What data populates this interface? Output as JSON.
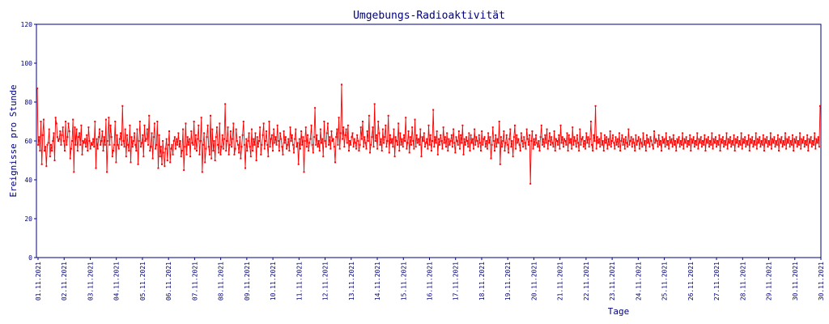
{
  "chart_data": {
    "type": "line",
    "title": "Umgebungs-Radioaktivität",
    "xlabel": "Tage",
    "ylabel": "Ereignisse pro Stunde",
    "ylim": [
      0,
      120
    ],
    "yticks": [
      0,
      20,
      40,
      60,
      80,
      100,
      120
    ],
    "xticks": [
      "01.11.2021",
      "02.11.2021",
      "03.11.2021",
      "04.11.2021",
      "05.11.2021",
      "06.11.2021",
      "07.11.2021",
      "08.11.2021",
      "09.11.2021",
      "10.11.2021",
      "11.11.2021",
      "12.11.2021",
      "13.11.2021",
      "14.11.2021",
      "15.11.2021",
      "16.11.2021",
      "17.11.2021",
      "18.11.2021",
      "19.11.2021",
      "20.11.2021",
      "21.11.2021",
      "22.11.2021",
      "23.11.2021",
      "24.11.2021",
      "25.11.2021",
      "26.11.2021",
      "27.11.2021",
      "28.11.2021",
      "29.11.2021",
      "30.11.2021",
      "30.11.2021"
    ],
    "grid": false,
    "legend": "none",
    "colors": {
      "series": "#ff0000",
      "axes": "#00007f"
    },
    "series": [
      {
        "values": [
          87,
          58,
          62,
          55,
          70,
          48,
          63,
          71,
          55,
          57,
          47,
          58,
          59,
          66,
          52,
          58,
          55,
          60,
          64,
          50,
          72,
          69,
          62,
          60,
          61,
          65,
          58,
          63,
          67,
          60,
          55,
          70,
          58,
          62,
          69,
          65,
          51,
          56,
          60,
          71,
          44,
          67,
          58,
          66,
          55,
          62,
          64,
          58,
          68,
          53,
          60,
          59,
          61,
          57,
          63,
          55,
          67,
          60,
          56,
          59,
          58,
          61,
          57,
          70,
          46,
          61,
          56,
          62,
          66,
          58,
          60,
          65,
          55,
          62,
          58,
          71,
          44,
          60,
          72,
          58,
          68,
          62,
          52,
          55,
          58,
          70,
          49,
          63,
          58,
          56,
          61,
          64,
          58,
          78,
          60,
          57,
          66,
          52,
          63,
          58,
          55,
          68,
          49,
          62,
          57,
          60,
          64,
          58,
          55,
          66,
          48,
          60,
          70,
          57,
          59,
          63,
          52,
          68,
          60,
          61,
          66,
          58,
          73,
          55,
          57,
          64,
          51,
          62,
          69,
          56,
          58,
          70,
          46,
          63,
          52,
          57,
          48,
          60,
          54,
          47,
          56,
          61,
          50,
          58,
          65,
          49,
          56,
          58,
          53,
          60,
          62,
          56,
          61,
          58,
          64,
          57,
          60,
          52,
          55,
          66,
          45,
          57,
          69,
          53,
          62,
          58,
          61,
          52,
          65,
          59,
          58,
          70,
          56,
          63,
          55,
          61,
          68,
          53,
          60,
          72,
          44,
          58,
          64,
          49,
          56,
          62,
          68,
          57,
          53,
          73,
          51,
          66,
          55,
          60,
          50,
          62,
          67,
          58,
          54,
          69,
          53,
          57,
          63,
          56,
          61,
          79,
          55,
          60,
          67,
          53,
          58,
          65,
          57,
          61,
          69,
          53,
          56,
          66,
          60,
          58,
          54,
          62,
          51,
          57,
          63,
          70,
          58,
          46,
          61,
          55,
          60,
          64,
          57,
          52,
          66,
          55,
          61,
          58,
          64,
          50,
          62,
          57,
          60,
          67,
          53,
          58,
          63,
          69,
          56,
          60,
          65,
          58,
          52,
          70,
          57,
          61,
          63,
          55,
          66,
          59,
          62,
          58,
          68,
          60,
          55,
          64,
          61,
          57,
          53,
          65,
          59,
          62,
          56,
          58,
          61,
          55,
          67,
          60,
          63,
          58,
          54,
          61,
          66,
          57,
          59,
          48,
          61,
          56,
          65,
          58,
          62,
          44,
          60,
          67,
          57,
          63,
          55,
          59,
          61,
          68,
          58,
          54,
          62,
          77,
          58,
          63,
          57,
          60,
          55,
          66,
          59,
          61,
          52,
          70,
          60,
          57,
          64,
          69,
          58,
          62,
          56,
          65,
          60,
          61,
          57,
          49,
          62,
          66,
          58,
          72,
          56,
          64,
          89,
          61,
          67,
          57,
          63,
          66,
          59,
          68,
          55,
          60,
          58,
          62,
          64,
          57,
          61,
          59,
          56,
          63,
          60,
          55,
          58,
          67,
          61,
          70,
          57,
          62,
          59,
          56,
          65,
          60,
          73,
          54,
          58,
          62,
          67,
          57,
          79,
          60,
          63,
          56,
          70,
          64,
          58,
          61,
          55,
          66,
          59,
          62,
          68,
          57,
          60,
          73,
          54,
          63,
          59,
          61,
          57,
          66,
          52,
          62,
          60,
          58,
          69,
          55,
          64,
          58,
          61,
          57,
          63,
          60,
          72,
          56,
          59,
          65,
          54,
          62,
          58,
          67,
          60,
          56,
          71,
          57,
          63,
          59,
          61,
          58,
          66,
          52,
          62,
          60,
          64,
          57,
          59,
          61,
          56,
          68,
          58,
          63,
          55,
          60,
          76,
          57,
          62,
          59,
          65,
          53,
          61,
          58,
          63,
          60,
          56,
          67,
          59,
          62,
          57,
          64,
          55,
          61,
          58,
          60,
          63,
          57,
          66,
          59,
          54,
          62,
          60,
          58,
          65,
          56,
          63,
          59,
          68,
          53,
          61,
          58,
          62,
          60,
          57,
          64,
          55,
          63,
          59,
          61,
          56,
          66,
          58,
          62,
          60,
          57,
          63,
          59,
          55,
          65,
          58,
          61,
          62,
          57,
          60,
          56,
          64,
          59,
          62,
          51,
          58,
          67,
          60,
          55,
          63,
          57,
          61,
          59,
          70,
          48,
          62,
          57,
          60,
          65,
          55,
          59,
          63,
          58,
          54,
          61,
          66,
          57,
          60,
          52,
          62,
          68,
          56,
          63,
          59,
          61,
          58,
          55,
          64,
          60,
          57,
          62,
          59,
          56,
          66,
          61,
          58,
          63,
          38,
          60,
          65,
          56,
          61,
          58,
          63,
          59,
          57,
          60,
          55,
          62,
          68,
          58,
          61,
          57,
          63,
          59,
          66,
          56,
          60,
          64,
          58,
          62,
          59,
          57,
          65,
          55,
          61,
          60,
          58,
          63,
          56,
          68,
          59,
          62,
          57,
          61,
          60,
          58,
          64,
          55,
          63,
          59,
          61,
          56,
          67,
          58,
          62,
          60,
          57,
          63,
          59,
          55,
          66,
          58,
          61,
          62,
          57,
          60,
          56,
          64,
          59,
          62,
          57,
          61,
          70,
          58,
          55,
          63,
          60,
          78,
          56,
          62,
          59,
          61,
          57,
          64,
          58,
          60,
          55,
          63,
          59,
          62,
          56,
          61,
          58,
          65,
          57,
          60,
          63,
          59,
          56,
          62,
          58,
          61,
          57,
          64,
          55,
          60,
          63,
          58,
          61,
          56,
          62,
          59,
          57,
          66,
          58,
          60,
          62,
          57,
          61,
          59,
          55,
          63,
          58,
          60,
          62,
          56,
          61,
          59,
          57,
          64,
          58,
          60,
          55,
          63,
          59,
          61,
          57,
          62,
          60,
          58,
          56,
          65,
          59,
          61,
          60,
          57,
          63,
          58,
          60,
          55,
          62,
          59,
          61,
          57,
          64,
          58,
          60,
          56,
          62,
          59,
          61,
          57,
          63,
          58,
          60,
          55,
          61,
          59,
          62,
          57,
          60,
          58,
          64,
          56,
          61,
          59,
          62,
          57,
          60,
          58,
          63,
          55,
          61,
          59,
          62,
          57,
          60,
          58,
          64,
          56,
          61,
          59,
          62,
          57,
          60,
          58,
          63,
          55,
          61,
          59,
          62,
          57,
          60,
          58,
          64,
          56,
          61,
          59,
          62,
          57,
          60,
          58,
          63,
          55,
          61,
          59,
          62,
          57,
          60,
          58,
          64,
          56,
          61,
          59,
          62,
          57,
          60,
          58,
          63,
          55,
          61,
          59,
          62,
          57,
          60,
          58,
          64,
          56,
          61,
          59,
          62,
          57,
          60,
          58,
          63,
          55,
          61,
          59,
          62,
          57,
          60,
          58,
          64,
          56,
          61,
          59,
          62,
          57,
          60,
          58,
          63,
          55,
          61,
          59,
          62,
          57,
          60,
          58,
          64,
          56,
          61,
          59,
          62,
          57,
          60,
          58,
          63,
          55,
          61,
          59,
          62,
          57,
          60,
          58,
          64,
          56,
          61,
          59,
          62,
          57,
          60,
          58,
          63,
          55,
          61,
          59,
          62,
          57,
          60,
          58,
          64,
          56,
          61,
          59,
          62,
          57,
          60,
          58,
          63,
          55,
          61,
          59,
          62,
          57,
          60,
          58,
          64,
          56,
          61,
          59,
          62,
          57,
          78
        ]
      }
    ]
  }
}
